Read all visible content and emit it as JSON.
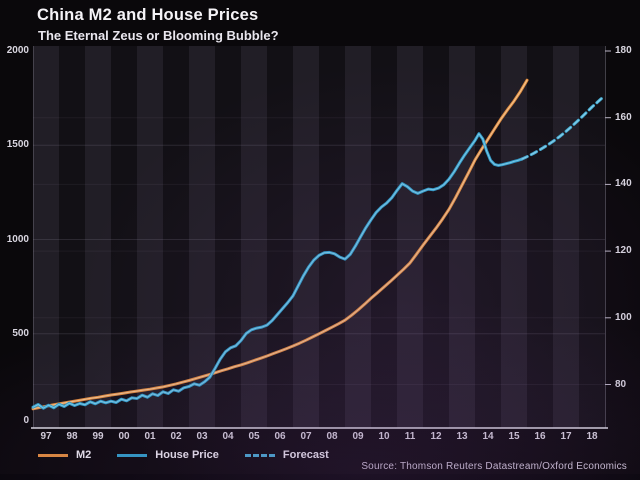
{
  "source": {
    "text": "Source: Thomson Reuters Datastream/Oxford Economics"
  },
  "chart_data": {
    "type": "line",
    "title": "China M2 and House Prices",
    "subtitle": "The Eternal Zeus or Blooming Bubble?",
    "legend_position": "bottom",
    "background": {
      "band_light": "#211e26",
      "band_dark": "#121015",
      "alternating_year_bands": true
    },
    "x_axis": {
      "labels": [
        "97",
        "98",
        "99",
        "00",
        "01",
        "02",
        "03",
        "04",
        "05",
        "06",
        "07",
        "08",
        "09",
        "10",
        "11",
        "12",
        "13",
        "14",
        "15",
        "16",
        "17",
        "18"
      ],
      "start_year": 1997,
      "end_year": 2018
    },
    "y_left": {
      "ticks": [
        2000,
        1500,
        1000,
        500,
        0
      ],
      "range": [
        0,
        2000
      ],
      "for_series": "M2"
    },
    "y_right": {
      "ticks": [
        180,
        160,
        140,
        120,
        100,
        80
      ],
      "range": [
        69,
        180
      ],
      "for_series": "House Price / Forecast"
    },
    "series": [
      {
        "name": "M2",
        "axis": "left",
        "style": "solid",
        "color": "#e08c3e",
        "core_color": "#f6cb96",
        "points": [
          [
            1997.0,
            102
          ],
          [
            1997.25,
            109
          ],
          [
            1997.5,
            115
          ],
          [
            1997.75,
            122
          ],
          [
            1998.0,
            128
          ],
          [
            1998.25,
            134
          ],
          [
            1998.5,
            140
          ],
          [
            1998.75,
            146
          ],
          [
            1999.0,
            152
          ],
          [
            1999.25,
            158
          ],
          [
            1999.5,
            163
          ],
          [
            1999.75,
            169
          ],
          [
            2000.0,
            175
          ],
          [
            2000.25,
            180
          ],
          [
            2000.5,
            185
          ],
          [
            2000.75,
            191
          ],
          [
            2001.0,
            196
          ],
          [
            2001.25,
            201
          ],
          [
            2001.5,
            206
          ],
          [
            2001.75,
            212
          ],
          [
            2002.0,
            218
          ],
          [
            2002.25,
            226
          ],
          [
            2002.5,
            234
          ],
          [
            2002.75,
            243
          ],
          [
            2003.0,
            252
          ],
          [
            2003.25,
            262
          ],
          [
            2003.5,
            272
          ],
          [
            2003.75,
            282
          ],
          [
            2004.0,
            293
          ],
          [
            2004.25,
            304
          ],
          [
            2004.5,
            314
          ],
          [
            2004.75,
            325
          ],
          [
            2005.0,
            335
          ],
          [
            2005.25,
            346
          ],
          [
            2005.5,
            358
          ],
          [
            2005.75,
            370
          ],
          [
            2006.0,
            382
          ],
          [
            2006.25,
            395
          ],
          [
            2006.5,
            408
          ],
          [
            2006.75,
            421
          ],
          [
            2007.0,
            435
          ],
          [
            2007.25,
            450
          ],
          [
            2007.5,
            466
          ],
          [
            2007.75,
            483
          ],
          [
            2008.0,
            500
          ],
          [
            2008.25,
            517
          ],
          [
            2008.5,
            535
          ],
          [
            2008.75,
            553
          ],
          [
            2009.0,
            572
          ],
          [
            2009.25,
            598
          ],
          [
            2009.5,
            626
          ],
          [
            2009.75,
            656
          ],
          [
            2010.0,
            688
          ],
          [
            2010.25,
            718
          ],
          [
            2010.5,
            748
          ],
          [
            2010.75,
            778
          ],
          [
            2011.0,
            810
          ],
          [
            2011.25,
            842
          ],
          [
            2011.5,
            876
          ],
          [
            2011.75,
            922
          ],
          [
            2012.0,
            970
          ],
          [
            2012.25,
            1015
          ],
          [
            2012.5,
            1060
          ],
          [
            2012.75,
            1108
          ],
          [
            2013.0,
            1160
          ],
          [
            2013.25,
            1222
          ],
          [
            2013.5,
            1288
          ],
          [
            2013.75,
            1354
          ],
          [
            2014.0,
            1422
          ],
          [
            2014.25,
            1478
          ],
          [
            2014.5,
            1532
          ],
          [
            2014.75,
            1586
          ],
          [
            2015.0,
            1640
          ],
          [
            2015.25,
            1688
          ],
          [
            2015.5,
            1734
          ],
          [
            2015.75,
            1786
          ],
          [
            2016.0,
            1845
          ]
        ]
      },
      {
        "name": "House Price",
        "axis": "right",
        "style": "solid",
        "color": "#2f9fca",
        "core_color": "#7fd2ec",
        "points": [
          [
            1997.0,
            73.2
          ],
          [
            1997.2,
            74.0
          ],
          [
            1997.4,
            72.9
          ],
          [
            1997.6,
            73.8
          ],
          [
            1997.8,
            73.0
          ],
          [
            1998.0,
            74.1
          ],
          [
            1998.2,
            73.4
          ],
          [
            1998.4,
            74.4
          ],
          [
            1998.6,
            73.7
          ],
          [
            1998.8,
            74.3
          ],
          [
            1999.0,
            73.9
          ],
          [
            1999.2,
            74.8
          ],
          [
            1999.4,
            74.2
          ],
          [
            1999.6,
            75.0
          ],
          [
            1999.8,
            74.5
          ],
          [
            2000.0,
            75.0
          ],
          [
            2000.2,
            74.6
          ],
          [
            2000.4,
            75.6
          ],
          [
            2000.6,
            75.1
          ],
          [
            2000.8,
            76.0
          ],
          [
            2001.0,
            75.8
          ],
          [
            2001.2,
            76.8
          ],
          [
            2001.4,
            76.2
          ],
          [
            2001.6,
            77.2
          ],
          [
            2001.8,
            76.7
          ],
          [
            2002.0,
            77.8
          ],
          [
            2002.2,
            77.3
          ],
          [
            2002.4,
            78.4
          ],
          [
            2002.6,
            78.0
          ],
          [
            2002.8,
            79.0
          ],
          [
            2003.0,
            79.4
          ],
          [
            2003.2,
            80.2
          ],
          [
            2003.4,
            79.8
          ],
          [
            2003.6,
            80.8
          ],
          [
            2003.8,
            82.2
          ],
          [
            2004.0,
            84.8
          ],
          [
            2004.2,
            87.6
          ],
          [
            2004.4,
            89.8
          ],
          [
            2004.6,
            91.0
          ],
          [
            2004.8,
            91.6
          ],
          [
            2005.0,
            93.2
          ],
          [
            2005.2,
            95.3
          ],
          [
            2005.4,
            96.4
          ],
          [
            2005.6,
            96.9
          ],
          [
            2005.8,
            97.2
          ],
          [
            2006.0,
            97.8
          ],
          [
            2006.2,
            99.2
          ],
          [
            2006.4,
            101.0
          ],
          [
            2006.6,
            102.8
          ],
          [
            2006.8,
            104.6
          ],
          [
            2007.0,
            106.6
          ],
          [
            2007.2,
            109.6
          ],
          [
            2007.4,
            112.6
          ],
          [
            2007.6,
            115.2
          ],
          [
            2007.8,
            117.3
          ],
          [
            2008.0,
            118.7
          ],
          [
            2008.2,
            119.5
          ],
          [
            2008.4,
            119.6
          ],
          [
            2008.6,
            119.2
          ],
          [
            2008.8,
            118.2
          ],
          [
            2009.0,
            117.6
          ],
          [
            2009.2,
            119.0
          ],
          [
            2009.4,
            121.5
          ],
          [
            2009.6,
            124.3
          ],
          [
            2009.8,
            127.0
          ],
          [
            2010.0,
            129.4
          ],
          [
            2010.2,
            131.6
          ],
          [
            2010.4,
            133.2
          ],
          [
            2010.6,
            134.4
          ],
          [
            2010.8,
            136.0
          ],
          [
            2011.0,
            138.2
          ],
          [
            2011.2,
            140.2
          ],
          [
            2011.4,
            139.3
          ],
          [
            2011.6,
            138.0
          ],
          [
            2011.8,
            137.3
          ],
          [
            2012.0,
            138.0
          ],
          [
            2012.2,
            138.6
          ],
          [
            2012.4,
            138.4
          ],
          [
            2012.6,
            138.9
          ],
          [
            2012.8,
            139.9
          ],
          [
            2013.0,
            141.6
          ],
          [
            2013.2,
            143.8
          ],
          [
            2013.4,
            146.4
          ],
          [
            2013.6,
            148.8
          ],
          [
            2013.8,
            151.0
          ],
          [
            2014.0,
            153.2
          ],
          [
            2014.15,
            155.2
          ],
          [
            2014.3,
            153.6
          ],
          [
            2014.45,
            150.0
          ],
          [
            2014.6,
            147.2
          ],
          [
            2014.75,
            146.0
          ],
          [
            2014.9,
            145.7
          ],
          [
            2015.05,
            145.9
          ],
          [
            2015.2,
            146.2
          ],
          [
            2015.35,
            146.5
          ],
          [
            2015.5,
            146.9
          ],
          [
            2015.65,
            147.2
          ],
          [
            2015.8,
            147.6
          ]
        ]
      },
      {
        "name": "Forecast",
        "axis": "right",
        "style": "dashed",
        "color": "#46aed4",
        "core_color": "#8ed6ee",
        "points": [
          [
            2015.8,
            147.6
          ],
          [
            2016.0,
            148.3
          ],
          [
            2016.25,
            149.3
          ],
          [
            2016.5,
            150.4
          ],
          [
            2016.75,
            151.6
          ],
          [
            2017.0,
            152.9
          ],
          [
            2017.25,
            154.3
          ],
          [
            2017.5,
            155.9
          ],
          [
            2017.75,
            157.6
          ],
          [
            2018.0,
            159.4
          ],
          [
            2018.25,
            161.3
          ],
          [
            2018.5,
            163.2
          ],
          [
            2018.7,
            164.6
          ],
          [
            2018.9,
            166.0
          ]
        ]
      }
    ]
  }
}
